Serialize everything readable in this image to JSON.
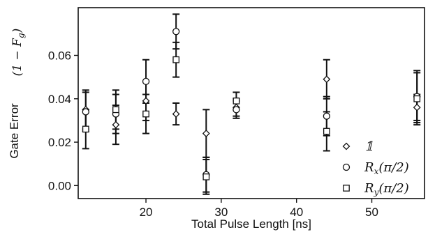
{
  "chart_data": {
    "type": "scatter",
    "xlabel": "Total Pulse Length [ns]",
    "ylabel": "Gate Error",
    "ylabel_math": "(1 − F",
    "ylabel_math_sub": "g",
    "ylabel_math_close": ")",
    "xlim": [
      11,
      57
    ],
    "ylim": [
      -0.006,
      0.082
    ],
    "x_ticks": [
      20,
      30,
      40,
      50
    ],
    "x_tick_labels": [
      "20",
      "30",
      "40",
      "50"
    ],
    "y_ticks": [
      0.0,
      0.02,
      0.04,
      0.06
    ],
    "y_tick_labels": [
      "0.00",
      "0.02",
      "0.04",
      "0.06"
    ],
    "grid": false,
    "legend_position": "bottom-right",
    "series": [
      {
        "name": "𝟙",
        "marker": "diamond",
        "points": [
          {
            "x": 12,
            "y": 0.035,
            "err": 0.009
          },
          {
            "x": 16,
            "y": 0.028,
            "err": 0.009
          },
          {
            "x": 20,
            "y": 0.039,
            "err": 0.009
          },
          {
            "x": 24,
            "y": 0.033,
            "err": 0.005
          },
          {
            "x": 28,
            "y": 0.024,
            "err": 0.011
          },
          {
            "x": 32,
            "y": 0.036,
            "err": 0.004
          },
          {
            "x": 44,
            "y": 0.049,
            "err": 0.009
          },
          {
            "x": 56,
            "y": 0.036,
            "err": 0.006
          }
        ]
      },
      {
        "name": "R",
        "name_sub": "x",
        "name_args": "(π/2)",
        "marker": "circle",
        "points": [
          {
            "x": 12,
            "y": 0.034,
            "err": 0.009
          },
          {
            "x": 16,
            "y": 0.033,
            "err": 0.009
          },
          {
            "x": 20,
            "y": 0.048,
            "err": 0.01
          },
          {
            "x": 24,
            "y": 0.071,
            "err": 0.008
          },
          {
            "x": 28,
            "y": 0.005,
            "err": 0.008
          },
          {
            "x": 32,
            "y": 0.035,
            "err": 0.004
          },
          {
            "x": 44,
            "y": 0.032,
            "err": 0.009
          },
          {
            "x": 56,
            "y": 0.041,
            "err": 0.012
          }
        ]
      },
      {
        "name": "R",
        "name_sub": "y",
        "name_args": "(π/2)",
        "marker": "square",
        "points": [
          {
            "x": 12,
            "y": 0.026,
            "err": 0.009
          },
          {
            "x": 16,
            "y": 0.035,
            "err": 0.009
          },
          {
            "x": 20,
            "y": 0.033,
            "err": 0.009
          },
          {
            "x": 24,
            "y": 0.058,
            "err": 0.008
          },
          {
            "x": 28,
            "y": 0.004,
            "err": 0.008
          },
          {
            "x": 32,
            "y": 0.039,
            "err": 0.004
          },
          {
            "x": 44,
            "y": 0.025,
            "err": 0.009
          },
          {
            "x": 56,
            "y": 0.04,
            "err": 0.012
          }
        ]
      }
    ]
  }
}
